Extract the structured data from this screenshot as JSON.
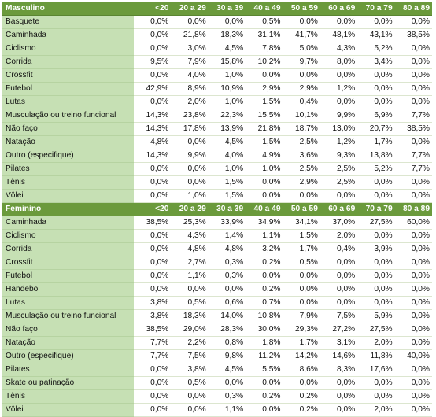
{
  "columns": [
    "<20",
    "20 a 29",
    "30 a 39",
    "40 a 49",
    "50 a 59",
    "60 a 69",
    "70 a 79",
    "80 a 89"
  ],
  "sections": [
    {
      "title": "Masculino",
      "rows": [
        {
          "label": "Basquete",
          "values": [
            "0,0%",
            "0,0%",
            "0,0%",
            "0,5%",
            "0,0%",
            "0,0%",
            "0,0%",
            "0,0%"
          ]
        },
        {
          "label": "Caminhada",
          "values": [
            "0,0%",
            "21,8%",
            "18,3%",
            "31,1%",
            "41,7%",
            "48,1%",
            "43,1%",
            "38,5%"
          ]
        },
        {
          "label": "Ciclismo",
          "values": [
            "0,0%",
            "3,0%",
            "4,5%",
            "7,8%",
            "5,0%",
            "4,3%",
            "5,2%",
            "0,0%"
          ]
        },
        {
          "label": "Corrida",
          "values": [
            "9,5%",
            "7,9%",
            "15,8%",
            "10,2%",
            "9,7%",
            "8,0%",
            "3,4%",
            "0,0%"
          ]
        },
        {
          "label": "Crossfit",
          "values": [
            "0,0%",
            "4,0%",
            "1,0%",
            "0,0%",
            "0,0%",
            "0,0%",
            "0,0%",
            "0,0%"
          ]
        },
        {
          "label": "Futebol",
          "values": [
            "42,9%",
            "8,9%",
            "10,9%",
            "2,9%",
            "2,9%",
            "1,2%",
            "0,0%",
            "0,0%"
          ]
        },
        {
          "label": "Lutas",
          "values": [
            "0,0%",
            "2,0%",
            "1,0%",
            "1,5%",
            "0,4%",
            "0,0%",
            "0,0%",
            "0,0%"
          ]
        },
        {
          "label": "Musculação ou treino funcional",
          "values": [
            "14,3%",
            "23,8%",
            "22,3%",
            "15,5%",
            "10,1%",
            "9,9%",
            "6,9%",
            "7,7%"
          ]
        },
        {
          "label": "Não faço",
          "values": [
            "14,3%",
            "17,8%",
            "13,9%",
            "21,8%",
            "18,7%",
            "13,0%",
            "20,7%",
            "38,5%"
          ]
        },
        {
          "label": "Natação",
          "values": [
            "4,8%",
            "0,0%",
            "4,5%",
            "1,5%",
            "2,5%",
            "1,2%",
            "1,7%",
            "0,0%"
          ]
        },
        {
          "label": "Outro (especifique)",
          "values": [
            "14,3%",
            "9,9%",
            "4,0%",
            "4,9%",
            "3,6%",
            "9,3%",
            "13,8%",
            "7,7%"
          ]
        },
        {
          "label": "Pilates",
          "values": [
            "0,0%",
            "0,0%",
            "1,0%",
            "1,0%",
            "2,5%",
            "2,5%",
            "5,2%",
            "7,7%"
          ]
        },
        {
          "label": "Tênis",
          "values": [
            "0,0%",
            "0,0%",
            "1,5%",
            "0,0%",
            "2,9%",
            "2,5%",
            "0,0%",
            "0,0%"
          ]
        },
        {
          "label": "Vôlei",
          "values": [
            "0,0%",
            "1,0%",
            "1,5%",
            "0,0%",
            "0,0%",
            "0,0%",
            "0,0%",
            "0,0%"
          ]
        }
      ]
    },
    {
      "title": "Feminino",
      "rows": [
        {
          "label": "Caminhada",
          "values": [
            "38,5%",
            "25,3%",
            "33,9%",
            "34,9%",
            "34,1%",
            "37,0%",
            "27,5%",
            "60,0%"
          ]
        },
        {
          "label": "Ciclismo",
          "values": [
            "0,0%",
            "4,3%",
            "1,4%",
            "1,1%",
            "1,5%",
            "2,0%",
            "0,0%",
            "0,0%"
          ]
        },
        {
          "label": "Corrida",
          "values": [
            "0,0%",
            "4,8%",
            "4,8%",
            "3,2%",
            "1,7%",
            "0,4%",
            "3,9%",
            "0,0%"
          ]
        },
        {
          "label": "Crossfit",
          "values": [
            "0,0%",
            "2,7%",
            "0,3%",
            "0,2%",
            "0,5%",
            "0,0%",
            "0,0%",
            "0,0%"
          ]
        },
        {
          "label": "Futebol",
          "values": [
            "0,0%",
            "1,1%",
            "0,3%",
            "0,0%",
            "0,0%",
            "0,0%",
            "0,0%",
            "0,0%"
          ]
        },
        {
          "label": "Handebol",
          "values": [
            "0,0%",
            "0,0%",
            "0,0%",
            "0,2%",
            "0,0%",
            "0,0%",
            "0,0%",
            "0,0%"
          ]
        },
        {
          "label": "Lutas",
          "values": [
            "3,8%",
            "0,5%",
            "0,6%",
            "0,7%",
            "0,0%",
            "0,0%",
            "0,0%",
            "0,0%"
          ]
        },
        {
          "label": "Musculação ou treino funcional",
          "values": [
            "3,8%",
            "18,3%",
            "14,0%",
            "10,8%",
            "7,9%",
            "7,5%",
            "5,9%",
            "0,0%"
          ]
        },
        {
          "label": "Não faço",
          "values": [
            "38,5%",
            "29,0%",
            "28,3%",
            "30,0%",
            "29,3%",
            "27,2%",
            "27,5%",
            "0,0%"
          ]
        },
        {
          "label": "Natação",
          "values": [
            "7,7%",
            "2,2%",
            "0,8%",
            "1,8%",
            "1,7%",
            "3,1%",
            "2,0%",
            "0,0%"
          ]
        },
        {
          "label": "Outro (especifique)",
          "values": [
            "7,7%",
            "7,5%",
            "9,8%",
            "11,2%",
            "14,2%",
            "14,6%",
            "11,8%",
            "40,0%"
          ]
        },
        {
          "label": "Pilates",
          "values": [
            "0,0%",
            "3,8%",
            "4,5%",
            "5,5%",
            "8,6%",
            "8,3%",
            "17,6%",
            "0,0%"
          ]
        },
        {
          "label": "Skate ou patinação",
          "values": [
            "0,0%",
            "0,5%",
            "0,0%",
            "0,0%",
            "0,0%",
            "0,0%",
            "0,0%",
            "0,0%"
          ]
        },
        {
          "label": "Tênis",
          "values": [
            "0,0%",
            "0,0%",
            "0,3%",
            "0,2%",
            "0,2%",
            "0,0%",
            "0,0%",
            "0,0%"
          ]
        },
        {
          "label": "Vôlei",
          "values": [
            "0,0%",
            "0,0%",
            "1,1%",
            "0,0%",
            "0,2%",
            "0,0%",
            "2,0%",
            "0,0%"
          ]
        }
      ]
    }
  ],
  "colors": {
    "header_bg": "#6b9a3c",
    "label_bg": "#c6e0b4",
    "header_text": "#ffffff"
  }
}
